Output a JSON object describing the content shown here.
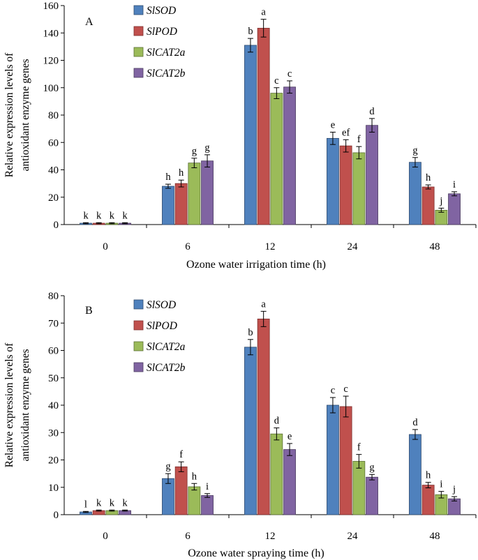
{
  "series_colors": [
    "#4f81bd",
    "#c0504d",
    "#9bbb59",
    "#8064a2"
  ],
  "series_strokes": [
    "#2f4b6e",
    "#7d2f2d",
    "#5b7034",
    "#4b3b60"
  ],
  "chart_data": [
    {
      "type": "bar",
      "panel_label": "A",
      "title": "",
      "xlabel": "Ozone water irrigation time (h)",
      "ylabel_lines": [
        "Relative expression levels of",
        "antioxidant enzyme genes"
      ],
      "categories": [
        "0",
        "6",
        "12",
        "24",
        "48"
      ],
      "ylim": [
        0,
        160
      ],
      "yticks": [
        0,
        20,
        40,
        60,
        80,
        100,
        120,
        140,
        160
      ],
      "legend_position": "top-center",
      "series": [
        {
          "name": "SlSOD",
          "values": [
            1,
            28,
            131,
            63,
            45.5
          ],
          "errors": [
            0.4,
            1.5,
            5,
            4.5,
            3.5
          ],
          "letters": [
            "k",
            "h",
            "b",
            "e",
            "g"
          ]
        },
        {
          "name": "SlPOD",
          "values": [
            1,
            30,
            143.5,
            57.5,
            27.5
          ],
          "errors": [
            0.4,
            2.5,
            6.5,
            4.5,
            1.5
          ],
          "letters": [
            "k",
            "h",
            "a",
            "ef",
            "h"
          ]
        },
        {
          "name": "SlCAT2a",
          "values": [
            1,
            45,
            96,
            52.5,
            10.5
          ],
          "errors": [
            0.4,
            3.5,
            4,
            4.5,
            1.5
          ],
          "letters": [
            "k",
            "g",
            "c",
            "f",
            "j"
          ]
        },
        {
          "name": "SlCAT2b",
          "values": [
            1,
            46.5,
            100.5,
            72.5,
            22.5
          ],
          "errors": [
            0.4,
            4.5,
            4.5,
            5,
            1.5
          ],
          "letters": [
            "k",
            "g",
            "c",
            "d",
            "i"
          ]
        }
      ]
    },
    {
      "type": "bar",
      "panel_label": "B",
      "title": "",
      "xlabel": "Ozone water spraying time (h)",
      "ylabel_lines": [
        "Relative expression levels of",
        "antioxidant enzyme genes"
      ],
      "categories": [
        "0",
        "6",
        "12",
        "24",
        "48"
      ],
      "ylim": [
        0,
        80
      ],
      "yticks": [
        0,
        10,
        20,
        30,
        40,
        50,
        60,
        70,
        80
      ],
      "legend_position": "top-center",
      "series": [
        {
          "name": "SlSOD",
          "values": [
            1,
            13.2,
            61.2,
            40,
            29.3
          ],
          "errors": [
            0.2,
            1.8,
            2.8,
            2.8,
            1.8
          ],
          "letters": [
            "l",
            "g",
            "b",
            "c",
            "d"
          ]
        },
        {
          "name": "SlPOD",
          "values": [
            1.5,
            17.5,
            71.5,
            39.5,
            10.8
          ],
          "errors": [
            0.2,
            1.8,
            2.8,
            3.8,
            1
          ],
          "letters": [
            "k",
            "f",
            "a",
            "c",
            "h"
          ]
        },
        {
          "name": "SlCAT2a",
          "values": [
            1.5,
            10.2,
            29.5,
            19.5,
            7.3
          ],
          "errors": [
            0.2,
            1.2,
            2.2,
            2.5,
            1.2
          ],
          "letters": [
            "k",
            "h",
            "d",
            "f",
            "i"
          ]
        },
        {
          "name": "SlCAT2b",
          "values": [
            1.5,
            7,
            23.8,
            13.7,
            5.8
          ],
          "errors": [
            0.2,
            0.7,
            2.2,
            1,
            0.8
          ],
          "letters": [
            "k",
            "i",
            "e",
            "g",
            "j"
          ]
        }
      ]
    }
  ]
}
